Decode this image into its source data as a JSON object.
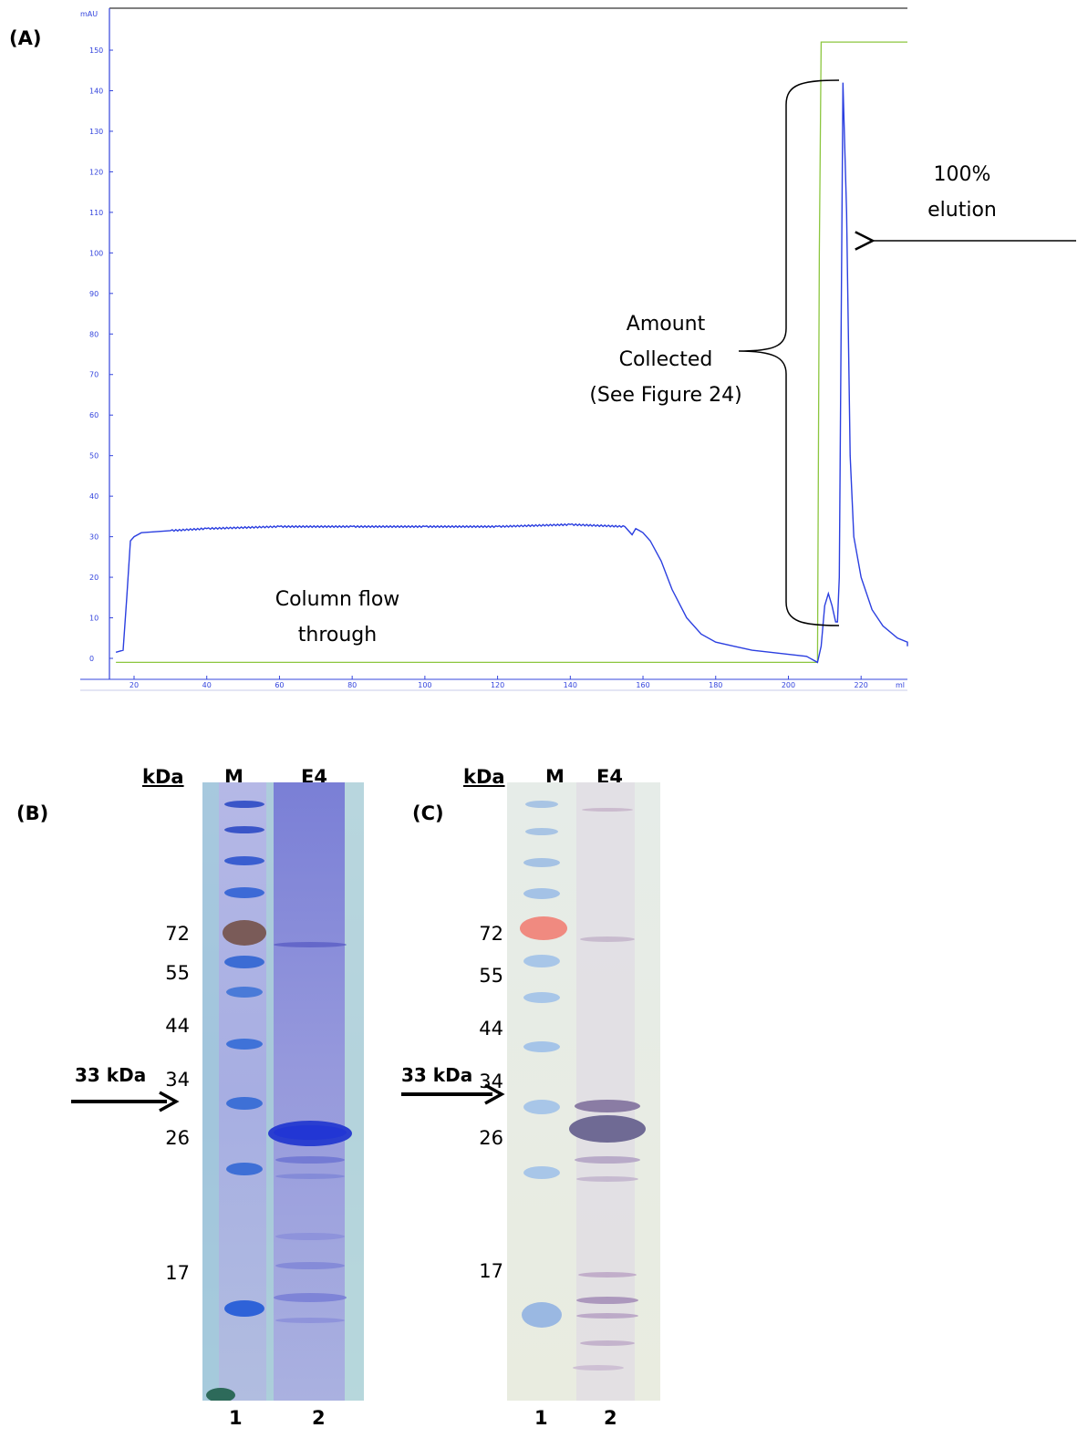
{
  "panels": {
    "a_label": "(A)",
    "b_label": "(B)",
    "c_label": "(C)"
  },
  "chromatogram": {
    "ylabel_unit": "mAU",
    "xlabel_unit": "ml",
    "annotations": {
      "elution_line1": "100%",
      "elution_line2": "elution",
      "collected_line1": "Amount",
      "collected_line2": "Collected",
      "collected_line3": "(See Figure 24)",
      "flow_line1": "Column flow",
      "flow_line2": "through"
    },
    "colors": {
      "absorbance": "#2b3fe0",
      "gradient": "#8cc63f",
      "axis": "#3344dd"
    }
  },
  "chart_data": {
    "type": "line",
    "ylabel": "mAU",
    "xlabel": "ml",
    "xlim": [
      15,
      240
    ],
    "ylim": [
      -2,
      160
    ],
    "x_ticks": [
      20,
      40,
      60,
      80,
      100,
      120,
      140,
      160,
      180,
      200,
      220
    ],
    "y_ticks": [
      0,
      10,
      20,
      30,
      40,
      50,
      60,
      70,
      80,
      90,
      100,
      110,
      120,
      130,
      140,
      150
    ],
    "grid": false,
    "series": [
      {
        "x": [
          15,
          17,
          18,
          19,
          20,
          22,
          30,
          40,
          60,
          80,
          100,
          120,
          140,
          155,
          157,
          158,
          159,
          160,
          162,
          165,
          168,
          172,
          176,
          180,
          185,
          190,
          195,
          200,
          205,
          208,
          209,
          210,
          211,
          212,
          213,
          213.5,
          214,
          215,
          216,
          217,
          218,
          220,
          223,
          226,
          230,
          234,
          237
        ],
        "y": [
          1.5,
          2,
          15,
          29,
          30,
          31,
          31.5,
          32,
          32.5,
          32.5,
          32.5,
          32.5,
          33,
          32.5,
          30.5,
          32,
          31.5,
          31,
          29,
          24,
          17,
          10,
          6,
          4,
          3,
          2,
          1.5,
          1,
          0.5,
          -1,
          3,
          13,
          16,
          13,
          9,
          9,
          20,
          142,
          110,
          50,
          30,
          20,
          12,
          8,
          5,
          4,
          3
        ]
      },
      {
        "x": [
          15,
          208,
          208.5,
          209,
          237
        ],
        "y": [
          -1,
          -1,
          100,
          152,
          152
        ]
      }
    ]
  },
  "gel_b": {
    "kda": "kDa",
    "lane_m": "M",
    "lane_e4": "E4",
    "mw": [
      "72",
      "55",
      "44",
      "34",
      "26",
      "17"
    ],
    "arrow_label": "33 kDa",
    "lane_1": "1",
    "lane_2": "2"
  },
  "gel_c": {
    "kda": "kDa",
    "lane_m": "M",
    "lane_e4": "E4",
    "mw": [
      "72",
      "55",
      "44",
      "34",
      "26",
      "17"
    ],
    "arrow_label": "33 kDa",
    "lane_1": "1",
    "lane_2": "2"
  }
}
